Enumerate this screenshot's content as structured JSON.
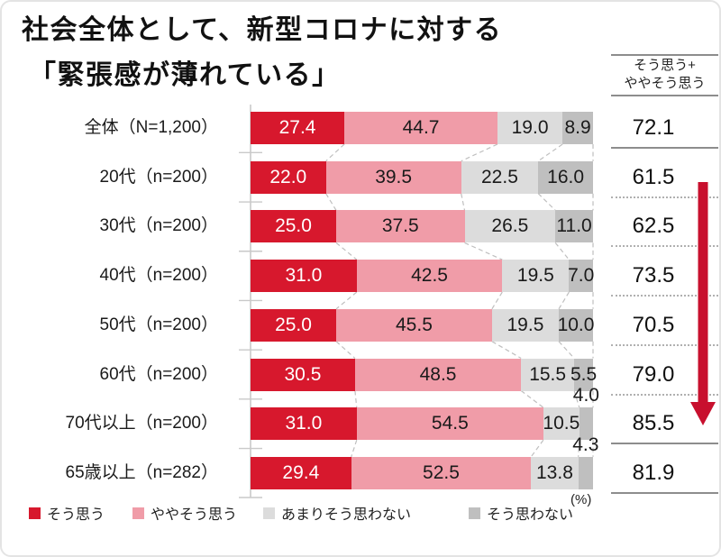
{
  "title": {
    "line1": "社会全体として、新型コロナに対する",
    "line2": "「緊張感が薄れている」"
  },
  "summary_column": {
    "header_line1": "そう思う+",
    "header_line2": "ややそう思う"
  },
  "unit_label": "(%)",
  "chart_data": {
    "type": "bar",
    "stacked": true,
    "orientation": "horizontal",
    "title": "社会全体として、新型コロナに対する「緊張感が薄れている」",
    "xlim": [
      0,
      100
    ],
    "unit": "%",
    "grid": false,
    "legend_position": "bottom",
    "categories": [
      "全体（N=1,200）",
      "20代（n=200）",
      "30代（n=200）",
      "40代（n=200）",
      "50代（n=200）",
      "60代（n=200）",
      "70代以上（n=200）",
      "65歳以上（n=282）"
    ],
    "series": [
      {
        "name": "そう思う",
        "color": "#D7182D",
        "values": [
          27.4,
          22.0,
          25.0,
          31.0,
          25.0,
          30.5,
          31.0,
          29.4
        ]
      },
      {
        "name": "ややそう思う",
        "color": "#F09CA8",
        "values": [
          44.7,
          39.5,
          37.5,
          42.5,
          45.5,
          48.5,
          54.5,
          52.5
        ]
      },
      {
        "name": "あまりそう思わない",
        "color": "#DCDCDC",
        "values": [
          19.0,
          22.5,
          26.5,
          19.5,
          19.5,
          15.5,
          10.5,
          13.8
        ]
      },
      {
        "name": "そう思わない",
        "color": "#BFBFBF",
        "values": [
          8.9,
          16.0,
          11.0,
          7.0,
          10.0,
          5.5,
          4.0,
          4.3
        ]
      }
    ],
    "summary": {
      "label": "そう思う+ややそう思う",
      "values": [
        72.1,
        61.5,
        62.5,
        73.5,
        70.5,
        79.0,
        85.5,
        81.9
      ]
    },
    "trend_arrow": {
      "direction": "down",
      "color": "#C8102E"
    }
  }
}
